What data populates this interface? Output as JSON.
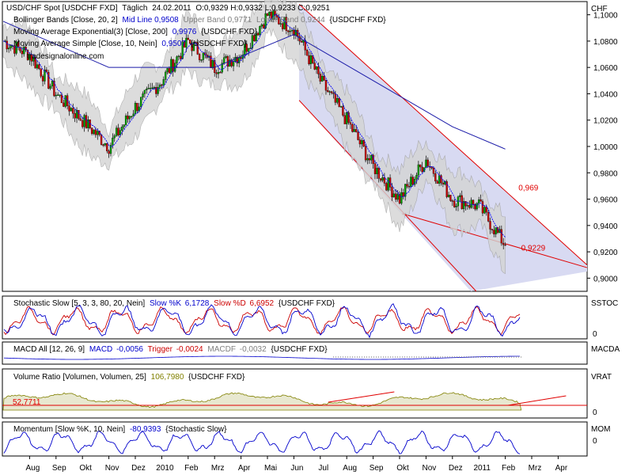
{
  "chart_data": [
    {
      "type": "candlestick",
      "panel": "price",
      "title": "USD/CHF Spot [USDCHF FXD]",
      "timeframe": "Täglich",
      "date": "24.02.2011",
      "header_values": "O:0,9329 H:0,9332 L:0,9233 C:0,9251",
      "axis_unit": "CHF",
      "watermark": "tradesignalonline.com",
      "legend": [
        {
          "label": "Bollinger Bands [Close, 20, 2]",
          "parts": [
            "Mid Line 0,9508",
            "Upper Band 0,9771",
            "Lower Band 0,9244",
            "{USDCHF FXD}"
          ]
        },
        {
          "label": "Moving Average Exponential(3) [Close, 200]",
          "parts": [
            "0,9976",
            "{USDCHF FXD}"
          ]
        },
        {
          "label": "Moving Average Simple [Close, 10, Nein]",
          "parts": [
            "0,9507",
            "{USDCHF FXD}"
          ]
        }
      ],
      "ylim": [
        0.89,
        1.11
      ],
      "y_ticks": [
        "1,1000",
        "1,0800",
        "1,0600",
        "1,0400",
        "1,0200",
        "1,0000",
        "0,9800",
        "0,9600",
        "0,9400",
        "0,9200",
        "0,9000"
      ],
      "y_tick_values": [
        1.1,
        1.08,
        1.06,
        1.04,
        1.02,
        1.0,
        0.98,
        0.96,
        0.94,
        0.92,
        0.9
      ],
      "annotations": [
        {
          "text": "0,969",
          "color": "#e00000"
        },
        {
          "text": "0,9229",
          "color": "#e00000"
        }
      ],
      "series_keypoints": {
        "close_path": [
          [
            "Jul 2009",
            1.08
          ],
          [
            "Aug 2009",
            1.07
          ],
          [
            "Sep 2009",
            1.04
          ],
          [
            "Okt 2009",
            1.02
          ],
          [
            "Nov 2009",
            1.0
          ],
          [
            "Dez 2009",
            1.03
          ],
          [
            "Jan 2010",
            1.05
          ],
          [
            "Feb 2010",
            1.08
          ],
          [
            "Mrz 2010",
            1.06
          ],
          [
            "Apr 2010",
            1.07
          ],
          [
            "Mai 2010",
            1.1
          ],
          [
            "Jun 2010",
            1.09
          ],
          [
            "Jul 2010",
            1.05
          ],
          [
            "Aug 2010",
            1.02
          ],
          [
            "Sep 2010",
            0.985
          ],
          [
            "Okt 2010",
            0.96
          ],
          [
            "Nov 2010",
            0.99
          ],
          [
            "Dez 2010",
            0.96
          ],
          [
            "Jan 2011",
            0.955
          ],
          [
            "Feb 2011",
            0.925
          ]
        ],
        "ma200": [
          [
            "Jul 2009",
            1.095
          ],
          [
            "Nov 2009",
            1.06
          ],
          [
            "Mrz 2010",
            1.06
          ],
          [
            "Jun 2010",
            1.085
          ],
          [
            "Sep 2010",
            1.05
          ],
          [
            "Dez 2010",
            1.015
          ],
          [
            "Feb 2011",
            0.998
          ]
        ]
      },
      "trend_channel": {
        "upper": "red line from Jun 2010 high to Apr 2011",
        "lower": "red line from Jun 2010 to Mrz 2011",
        "support": "red line from Okt 2010 low to Apr 2011"
      }
    },
    {
      "type": "line",
      "panel": "stochastic",
      "title": "Stochastic Slow [5, 3, 3, 80, 20, Nein]",
      "series": [
        {
          "name": "Slow %K",
          "last": "6,1728",
          "color": "#0000cc"
        },
        {
          "name": "Slow %D",
          "last": "6,6952",
          "color": "#cc0000"
        }
      ],
      "source": "{USDCHF FXD}",
      "axis_label": "SSTOC",
      "y_ticks": [
        "0"
      ]
    },
    {
      "type": "line",
      "panel": "macd",
      "title": "MACD All [12, 26, 9]",
      "series": [
        {
          "name": "MACD",
          "last": "-0,0056",
          "color": "#0000cc"
        },
        {
          "name": "Trigger",
          "last": "-0,0024",
          "color": "#cc0000"
        },
        {
          "name": "MACDF",
          "last": "-0,0032",
          "color": "#808080"
        }
      ],
      "source": "{USDCHF FXD}",
      "axis_label": "MACDA"
    },
    {
      "type": "area",
      "panel": "volume_ratio",
      "title": "Volume Ratio [Volumen, Volumen, 25]",
      "series": [
        {
          "name": "Volume Ratio",
          "last": "106,7980",
          "color": "#808000"
        }
      ],
      "source": "{USDCHF FXD}",
      "axis_label": "VRAT",
      "y_ticks": [
        "0"
      ],
      "annotations": [
        {
          "text": "52,7711",
          "color": "#e00000"
        }
      ]
    },
    {
      "type": "line",
      "panel": "momentum",
      "title": "Momentum [Slow %K, 10, Nein]",
      "series": [
        {
          "name": "Momentum",
          "last": "-80,9393",
          "color": "#0000cc"
        }
      ],
      "source": "{Stochastic Slow}",
      "axis_label": "MOM",
      "y_ticks": [
        "0"
      ]
    }
  ],
  "x_axis": {
    "labels": [
      "Aug",
      "Sep",
      "Okt",
      "Nov",
      "Dez",
      "2010",
      "Feb",
      "Mrz",
      "Apr",
      "Mai",
      "Jun",
      "Jul",
      "Aug",
      "Sep",
      "Okt",
      "Nov",
      "Dez",
      "2011",
      "Feb",
      "Mrz",
      "Apr"
    ]
  },
  "colors": {
    "up": "#00a000",
    "down": "#cc0000",
    "bollinger_fill": "#d4d4d4",
    "channel_fill": "#d8daf2",
    "channel_line": "#e00000",
    "ma_line": "#1a1aa8",
    "sma_line": "#0000ff"
  }
}
